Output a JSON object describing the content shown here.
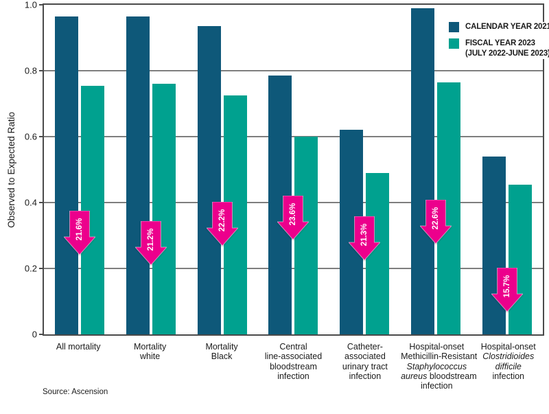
{
  "chart_data": {
    "type": "bar",
    "ylabel": "Observed to Expected Ratio",
    "ylim": [
      0,
      1.0
    ],
    "grid": true,
    "legend_position": "top-right",
    "y_ticks": [
      {
        "label": "0",
        "value": 0
      },
      {
        "label": "0.2",
        "value": 0.2
      },
      {
        "label": "0.4",
        "value": 0.4
      },
      {
        "label": "0.6",
        "value": 0.6
      },
      {
        "label": "0.8",
        "value": 0.8
      },
      {
        "label": "1.0",
        "value": 1.0
      }
    ],
    "categories": [
      "All mortality",
      "Mortality white",
      "Mortality Black",
      "Central line-associated bloodstream infection",
      "Catheter-associated urinary tract infection",
      "Hospital-onset Methicillin-Resistant Staphylococcus aureus bloodstream infection",
      "Hospital-onset Clostridioides difficile infection"
    ],
    "category_segments": [
      [
        {
          "t": "All mortality"
        }
      ],
      [
        {
          "t": "Mortality"
        },
        {
          "br": true
        },
        {
          "t": "white"
        }
      ],
      [
        {
          "t": "Mortality"
        },
        {
          "br": true
        },
        {
          "t": "Black"
        }
      ],
      [
        {
          "t": "Central"
        },
        {
          "br": true
        },
        {
          "t": "line-associated"
        },
        {
          "br": true
        },
        {
          "t": "bloodstream"
        },
        {
          "br": true
        },
        {
          "t": "infection"
        }
      ],
      [
        {
          "t": "Catheter-"
        },
        {
          "br": true
        },
        {
          "t": "associated"
        },
        {
          "br": true
        },
        {
          "t": "urinary tract"
        },
        {
          "br": true
        },
        {
          "t": "infection"
        }
      ],
      [
        {
          "t": "Hospital-onset"
        },
        {
          "br": true
        },
        {
          "t": "Methicillin-Resistant"
        },
        {
          "br": true
        },
        {
          "t": "Staphylococcus",
          "i": true
        },
        {
          "br": true
        },
        {
          "t": "aureus",
          "i": true
        },
        {
          "t": " bloodstream"
        },
        {
          "br": true
        },
        {
          "t": "infection"
        }
      ],
      [
        {
          "t": "Hospital-onset"
        },
        {
          "br": true
        },
        {
          "t": "Clostridioides",
          "i": true
        },
        {
          "br": true
        },
        {
          "t": "difficile",
          "i": true
        },
        {
          "br": true
        },
        {
          "t": "infection"
        }
      ]
    ],
    "series": [
      {
        "name": "CALENDAR YEAR 2021",
        "color": "#0e5879",
        "values": [
          0.965,
          0.965,
          0.935,
          0.785,
          0.62,
          0.99,
          0.54
        ]
      },
      {
        "name": "FISCAL YEAR 2023",
        "name_line2": "(JULY 2022-JUNE 2023)",
        "color": "#00a18f",
        "values": [
          0.755,
          0.76,
          0.725,
          0.6,
          0.49,
          0.765,
          0.455
        ]
      }
    ],
    "arrows": [
      {
        "label": "21.6%",
        "tip": 0.242
      },
      {
        "label": "21.2%",
        "tip": 0.211
      },
      {
        "label": "22.2%",
        "tip": 0.269
      },
      {
        "label": "23.6%",
        "tip": 0.287
      },
      {
        "label": "21.3%",
        "tip": 0.225
      },
      {
        "label": "22.6%",
        "tip": 0.275
      },
      {
        "label": "15.7%",
        "tip": 0.069
      }
    ],
    "arrow_color": "#ec008c",
    "source": "Source: Ascension"
  }
}
